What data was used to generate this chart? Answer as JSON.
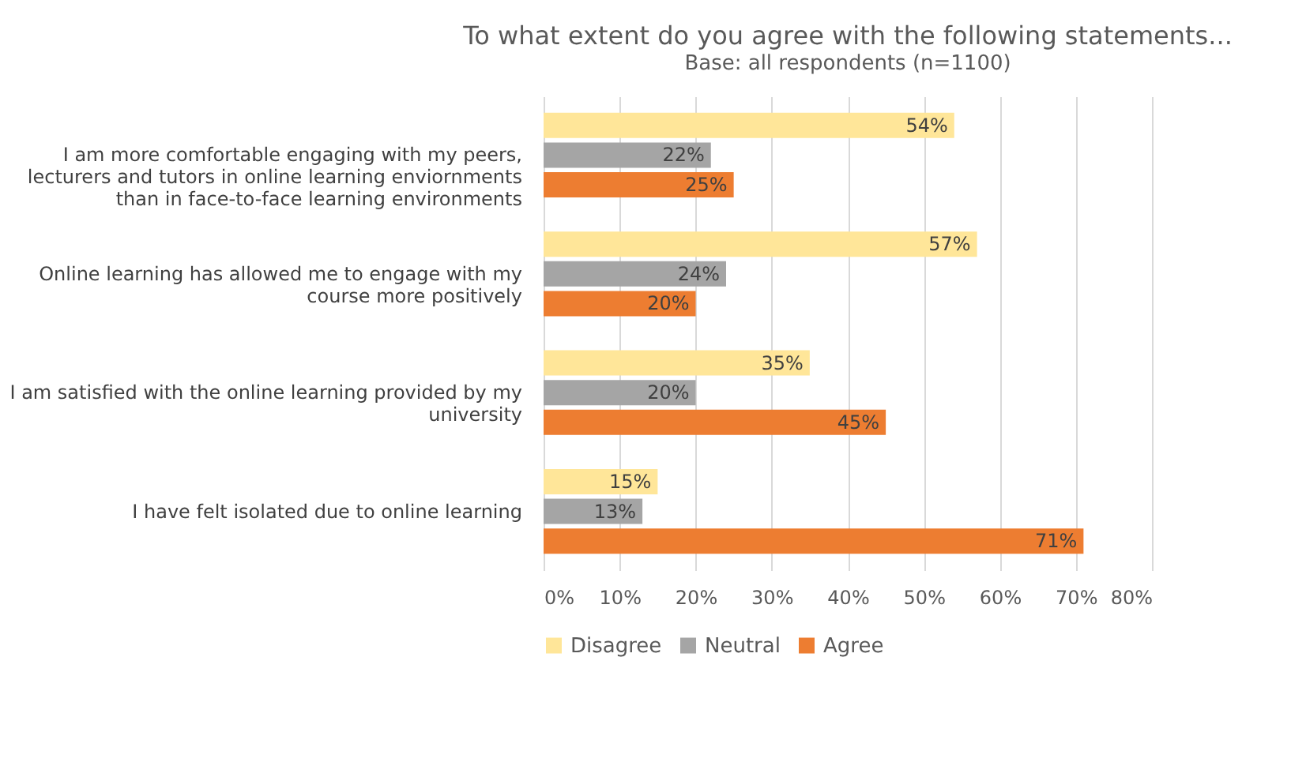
{
  "chart_data": {
    "type": "bar",
    "orientation": "horizontal",
    "title": "To what extent do you agree with the following statements...",
    "subtitle": "Base: all respondents (n=1100)",
    "categories": [
      "I am more comfortable engaging with my peers, lecturers and tutors in online learning enviornments than in face-to-face learning environments",
      "Online learning has allowed me to engage with my course more positively",
      "I am satisfied with the online learning provided by my university",
      "I have felt isolated due to online learning"
    ],
    "series": [
      {
        "name": "Disagree",
        "color": "#ffe699",
        "values": [
          54,
          57,
          35,
          15
        ],
        "value_labels": [
          "54%",
          "57%",
          "35%",
          "15%"
        ]
      },
      {
        "name": "Neutral",
        "color": "#a5a5a5",
        "values": [
          22,
          24,
          20,
          13
        ],
        "value_labels": [
          "22%",
          "24%",
          "20%",
          "13%"
        ]
      },
      {
        "name": "Agree",
        "color": "#ed7d31",
        "values": [
          25,
          20,
          45,
          71
        ],
        "value_labels": [
          "25%",
          "20%",
          "45%",
          "71%"
        ]
      }
    ],
    "xlim": [
      0,
      80
    ],
    "xticks": [
      {
        "value": 0,
        "label": "0%"
      },
      {
        "value": 10,
        "label": "10%"
      },
      {
        "value": 20,
        "label": "20%"
      },
      {
        "value": 30,
        "label": "30%"
      },
      {
        "value": 40,
        "label": "40%"
      },
      {
        "value": 50,
        "label": "50%"
      },
      {
        "value": 60,
        "label": "60%"
      },
      {
        "value": 70,
        "label": "70%"
      },
      {
        "value": 80,
        "label": "80%"
      }
    ],
    "grid": "x",
    "legend": "bottom"
  }
}
